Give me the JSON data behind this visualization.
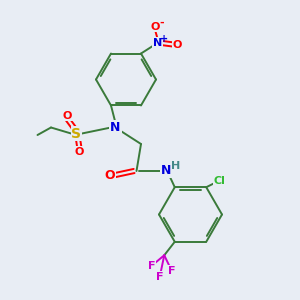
{
  "background_color": "#e8edf4",
  "bond_color": "#3a7a3a",
  "atom_colors": {
    "N": "#0000dd",
    "O": "#ff0000",
    "S": "#ccaa00",
    "Cl": "#33bb33",
    "F": "#cc00cc",
    "H": "#448888",
    "C": "#3a7a3a"
  },
  "figsize": [
    3.0,
    3.0
  ],
  "dpi": 100
}
